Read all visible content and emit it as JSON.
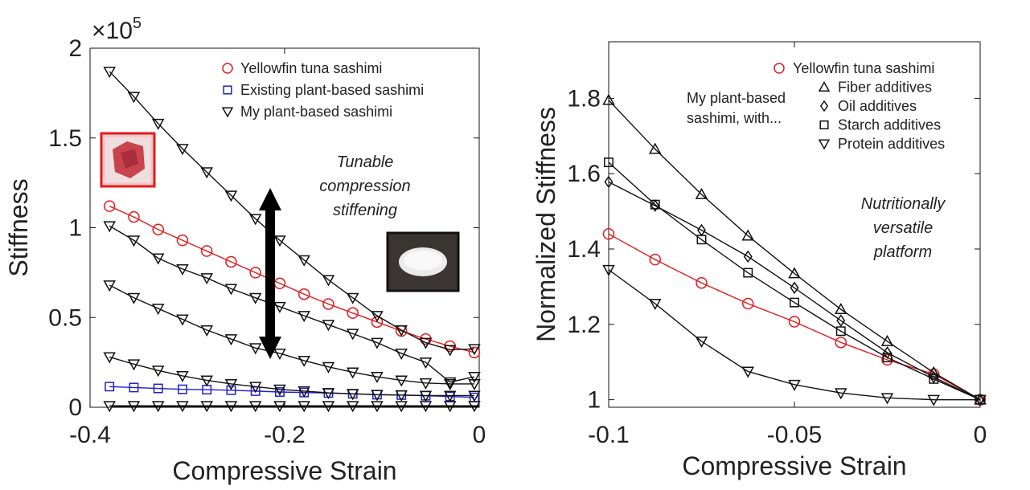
{
  "colors": {
    "red": "#e41a1c",
    "blue": "#1f1fcc",
    "black": "#111111"
  },
  "chart_data": [
    {
      "type": "line",
      "xlabel": "Compressive Strain",
      "ylabel": "Stiffness",
      "exponent_label_base": "×10",
      "exponent_label_power": "5",
      "xlim": [
        -0.4,
        0
      ],
      "ylim": [
        0,
        200000
      ],
      "xticks": [
        -0.4,
        -0.2,
        0
      ],
      "xtick_labels": [
        "-0.4",
        "-0.2",
        "0"
      ],
      "yticks": [
        0,
        50000,
        100000,
        150000,
        200000
      ],
      "ytick_labels": [
        "0",
        "0.5",
        "1",
        "1.5",
        "2"
      ],
      "legend": [
        "Yellowfin tuna sashimi",
        "Existing plant-based sashimi",
        "My plant-based sashimi"
      ],
      "legend_location": "top-right",
      "annotation_lines": [
        "Tunable",
        "compression",
        "stiffening"
      ],
      "series": [
        {
          "name": "Yellowfin tuna sashimi",
          "marker": "circle",
          "color": "red",
          "x": [
            -0.38,
            -0.355,
            -0.33,
            -0.305,
            -0.28,
            -0.255,
            -0.23,
            -0.205,
            -0.18,
            -0.155,
            -0.13,
            -0.105,
            -0.08,
            -0.055,
            -0.03,
            -0.005
          ],
          "y": [
            112000,
            106000,
            99000,
            93000,
            87000,
            81000,
            75000,
            69000,
            63000,
            57500,
            52500,
            47500,
            42500,
            38000,
            34000,
            30500
          ]
        },
        {
          "name": "Existing plant-based sashimi",
          "marker": "square",
          "color": "blue",
          "x": [
            -0.38,
            -0.355,
            -0.33,
            -0.305,
            -0.28,
            -0.255,
            -0.23,
            -0.205,
            -0.18,
            -0.155,
            -0.13,
            -0.105,
            -0.08,
            -0.055,
            -0.03,
            -0.005
          ],
          "y": [
            11500,
            11000,
            10500,
            10000,
            9800,
            9500,
            9000,
            8500,
            8200,
            7900,
            7500,
            7000,
            6800,
            6400,
            6000,
            5500
          ]
        },
        {
          "name": "My plant-based sashimi",
          "marker": "triangle-down",
          "color": "black",
          "x": [
            -0.38,
            -0.355,
            -0.33,
            -0.305,
            -0.28,
            -0.255,
            -0.23,
            -0.205,
            -0.18,
            -0.155,
            -0.13,
            -0.105,
            -0.08,
            -0.055,
            -0.03,
            -0.005
          ],
          "y": [
            187000,
            173000,
            158000,
            144000,
            131000,
            118000,
            105000,
            93000,
            82000,
            71000,
            61000,
            51000,
            43000,
            36000,
            32000,
            32500
          ]
        },
        {
          "name": "",
          "marker": "triangle-down",
          "color": "black",
          "x": [
            -0.38,
            -0.355,
            -0.33,
            -0.305,
            -0.28,
            -0.255,
            -0.23,
            -0.205,
            -0.18,
            -0.155,
            -0.13,
            -0.105,
            -0.08,
            -0.055,
            -0.03,
            -0.005
          ],
          "y": [
            101000,
            93000,
            83000,
            77000,
            72000,
            66000,
            61000,
            56000,
            51000,
            46000,
            41000,
            36000,
            30000,
            25000,
            14000,
            17000
          ]
        },
        {
          "name": "",
          "marker": "triangle-down",
          "color": "black",
          "x": [
            -0.38,
            -0.355,
            -0.33,
            -0.305,
            -0.28,
            -0.255,
            -0.23,
            -0.205,
            -0.18,
            -0.155,
            -0.13,
            -0.105,
            -0.08,
            -0.055,
            -0.03,
            -0.005
          ],
          "y": [
            68000,
            61000,
            55000,
            49000,
            43000,
            38000,
            33000,
            30000,
            26000,
            22500,
            19500,
            17000,
            15000,
            13500,
            13000,
            13000
          ]
        },
        {
          "name": "",
          "marker": "triangle-down",
          "color": "black",
          "x": [
            -0.38,
            -0.355,
            -0.33,
            -0.305,
            -0.28,
            -0.255,
            -0.23,
            -0.205,
            -0.18,
            -0.155,
            -0.13,
            -0.105,
            -0.08,
            -0.055,
            -0.03,
            -0.005
          ],
          "y": [
            28000,
            24000,
            20500,
            17500,
            15000,
            13000,
            11500,
            10000,
            9000,
            8000,
            7500,
            7000,
            6800,
            6500,
            6500,
            6500
          ]
        },
        {
          "name": "",
          "marker": "triangle-down",
          "color": "black",
          "x": [
            -0.38,
            -0.355,
            -0.33,
            -0.305,
            -0.28,
            -0.255,
            -0.23,
            -0.205,
            -0.18,
            -0.155,
            -0.13,
            -0.105,
            -0.08,
            -0.055,
            -0.03,
            -0.005
          ],
          "y": [
            800,
            800,
            800,
            800,
            800,
            800,
            800,
            800,
            800,
            800,
            800,
            800,
            800,
            800,
            800,
            800
          ]
        }
      ]
    },
    {
      "type": "line",
      "xlabel": "Compressive Strain",
      "ylabel": "Normalized Stiffness",
      "xlim": [
        -0.1,
        0
      ],
      "ylim": [
        0.98,
        1.95
      ],
      "xticks": [
        -0.1,
        -0.05,
        0
      ],
      "xtick_labels": [
        "-0.1",
        "-0.05",
        "0"
      ],
      "yticks": [
        1,
        1.2,
        1.4,
        1.6,
        1.8
      ],
      "ytick_labels": [
        "1",
        "1.2",
        "1.4",
        "1.6",
        "1.8"
      ],
      "legend": [
        "Yellowfin tuna sashimi",
        "Fiber additives",
        "Oil additives",
        "Starch additives",
        "Protein additives"
      ],
      "legend_prefix_lines": [
        "My plant-based",
        "sashimi, with..."
      ],
      "legend_location": "top-right",
      "annotation_lines": [
        "Nutritionally",
        "versatile",
        "platform"
      ],
      "series": [
        {
          "name": "Yellowfin tuna sashimi",
          "marker": "circle",
          "color": "red",
          "x": [
            -0.1,
            -0.0875,
            -0.075,
            -0.0625,
            -0.05,
            -0.0375,
            -0.025,
            -0.0125,
            0
          ],
          "y": [
            1.44,
            1.372,
            1.31,
            1.255,
            1.207,
            1.152,
            1.106,
            1.068,
            1.0
          ]
        },
        {
          "name": "Fiber additives",
          "marker": "triangle-up",
          "color": "black",
          "x": [
            -0.1,
            -0.0875,
            -0.075,
            -0.0625,
            -0.05,
            -0.0375,
            -0.025,
            -0.0125,
            0
          ],
          "y": [
            1.795,
            1.665,
            1.545,
            1.435,
            1.335,
            1.24,
            1.155,
            1.072,
            1.0
          ]
        },
        {
          "name": "Oil additives",
          "marker": "diamond",
          "color": "black",
          "x": [
            -0.1,
            -0.0875,
            -0.075,
            -0.0625,
            -0.05,
            -0.0375,
            -0.025,
            -0.0125,
            0
          ],
          "y": [
            1.578,
            1.515,
            1.45,
            1.38,
            1.297,
            1.21,
            1.125,
            1.06,
            1.0
          ]
        },
        {
          "name": "Starch additives",
          "marker": "square",
          "color": "black",
          "x": [
            -0.1,
            -0.0875,
            -0.075,
            -0.0625,
            -0.05,
            -0.0375,
            -0.025,
            -0.0125,
            0
          ],
          "y": [
            1.63,
            1.518,
            1.425,
            1.337,
            1.258,
            1.182,
            1.112,
            1.055,
            1.0
          ]
        },
        {
          "name": "Protein additives",
          "marker": "triangle-down",
          "color": "black",
          "x": [
            -0.1,
            -0.0875,
            -0.075,
            -0.0625,
            -0.05,
            -0.0375,
            -0.025,
            -0.0125,
            0
          ],
          "y": [
            1.345,
            1.255,
            1.155,
            1.075,
            1.04,
            1.018,
            1.005,
            1.0,
            1.0
          ]
        }
      ]
    }
  ]
}
